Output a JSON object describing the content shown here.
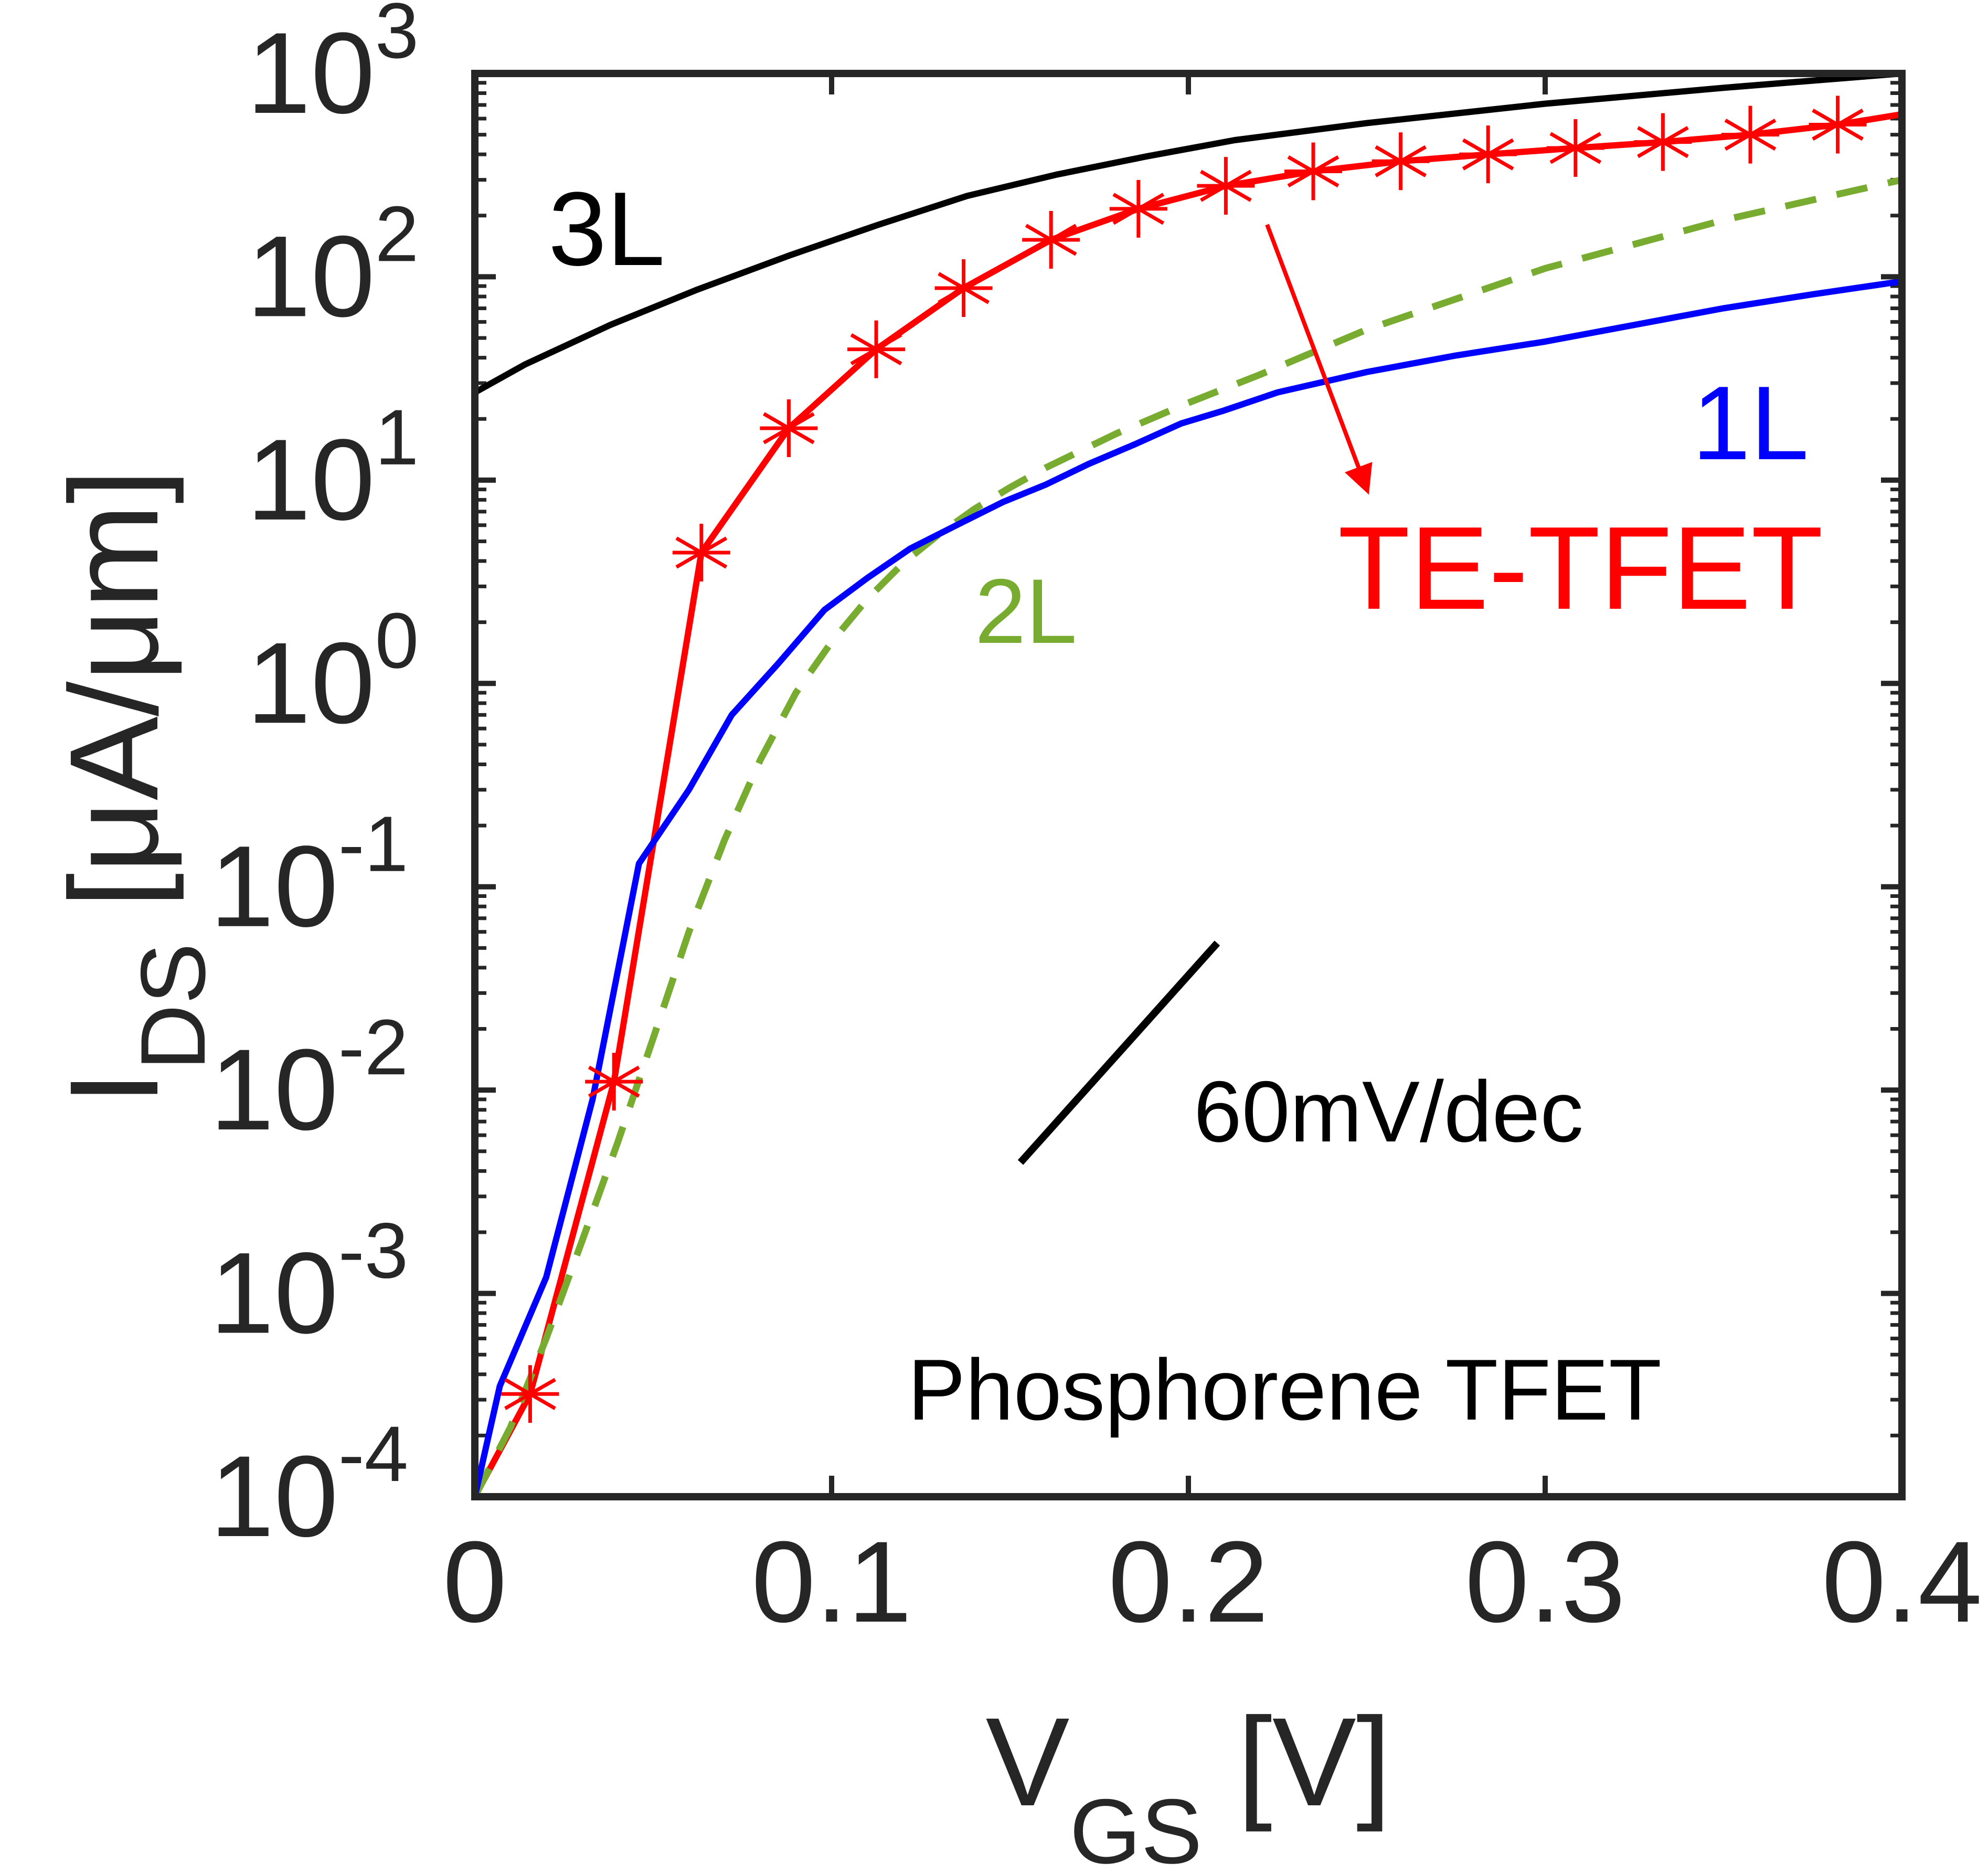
{
  "chart_data": {
    "type": "line",
    "title": "",
    "xlabel": {
      "main": "V",
      "sub": "GS",
      "suffix": " [V]"
    },
    "ylabel": {
      "main": "I",
      "sub": "DS",
      "suffix": " [μA/μm]"
    },
    "xlim": [
      0,
      0.4
    ],
    "ylim_log10": [
      -4,
      3
    ],
    "yscale": "log",
    "x_ticks": [
      {
        "value": 0,
        "label": "0"
      },
      {
        "value": 0.1,
        "label": "0.1"
      },
      {
        "value": 0.2,
        "label": "0.2"
      },
      {
        "value": 0.3,
        "label": "0.3"
      },
      {
        "value": 0.4,
        "label": "0.4"
      }
    ],
    "y_ticks": [
      {
        "exp": -4,
        "base": "10",
        "sup": "-4"
      },
      {
        "exp": -3,
        "base": "10",
        "sup": "-3"
      },
      {
        "exp": -2,
        "base": "10",
        "sup": "-2"
      },
      {
        "exp": -1,
        "base": "10",
        "sup": "-1"
      },
      {
        "exp": 0,
        "base": "10",
        "sup": "0"
      },
      {
        "exp": 1,
        "base": "10",
        "sup": "1"
      },
      {
        "exp": 2,
        "base": "10",
        "sup": "2"
      },
      {
        "exp": 3,
        "base": "10",
        "sup": "3"
      }
    ],
    "series": [
      {
        "name": "3L",
        "color": "#000000",
        "dash": "solid",
        "marker": "none",
        "x": [
          0,
          0.014,
          0.038,
          0.062,
          0.088,
          0.113,
          0.138,
          0.163,
          0.188,
          0.213,
          0.25,
          0.3,
          0.35,
          0.4
        ],
        "y": [
          27,
          37,
          58,
          86,
          127,
          180,
          250,
          318,
          390,
          470,
          570,
          710,
          850,
          1000
        ]
      },
      {
        "name": "TE-TFET",
        "color": "#ff0000",
        "dash": "solid",
        "marker": "asterisk",
        "x": [
          0,
          0.0155,
          0.039,
          0.0635,
          0.088,
          0.1125,
          0.137,
          0.1615,
          0.186,
          0.2105,
          0.235,
          0.2595,
          0.284,
          0.3085,
          0.333,
          0.3575,
          0.382,
          0.4
        ],
        "y": [
          0.0001,
          0.00032,
          0.011,
          4.4,
          18,
          44,
          88,
          152,
          216,
          280,
          330,
          370,
          400,
          430,
          460,
          500,
          560,
          630
        ]
      },
      {
        "name": "2L",
        "color": "#77ac30",
        "dash": "dashed",
        "marker": "none",
        "x": [
          0,
          0.01,
          0.02,
          0.03,
          0.04,
          0.05,
          0.06,
          0.07,
          0.08,
          0.09,
          0.1,
          0.11,
          0.12,
          0.13,
          0.14,
          0.15,
          0.16,
          0.18,
          0.2,
          0.22,
          0.25,
          0.3,
          0.35,
          0.4
        ],
        "y": [
          0.0001,
          0.00022,
          0.0006,
          0.0018,
          0.0055,
          0.018,
          0.06,
          0.17,
          0.42,
          0.9,
          1.6,
          2.6,
          3.9,
          5.4,
          7.2,
          9.2,
          11.5,
          17,
          24,
          33,
          55,
          110,
          190,
          300
        ]
      },
      {
        "name": "1L",
        "color": "#0000ff",
        "dash": "solid",
        "marker": "none",
        "x": [
          0,
          0.007,
          0.02,
          0.033,
          0.046,
          0.06,
          0.072,
          0.085,
          0.098,
          0.11,
          0.122,
          0.135,
          0.148,
          0.16,
          0.172,
          0.185,
          0.198,
          0.21,
          0.225,
          0.25,
          0.275,
          0.3,
          0.325,
          0.35,
          0.375,
          0.4
        ],
        "y": [
          0.0001,
          0.00035,
          0.0012,
          0.009,
          0.13,
          0.3,
          0.7,
          1.25,
          2.3,
          3.3,
          4.6,
          6.0,
          7.8,
          9.5,
          12,
          15,
          19,
          22,
          27,
          34,
          41,
          48,
          58,
          70,
          82,
          95
        ]
      }
    ],
    "annotations": {
      "label_3L": "3L",
      "label_1L": "1L",
      "label_2L": "2L",
      "label_te": "TE-TFET",
      "label_slope": "60mV/dec",
      "label_device": "Phosphorene TFET"
    }
  }
}
